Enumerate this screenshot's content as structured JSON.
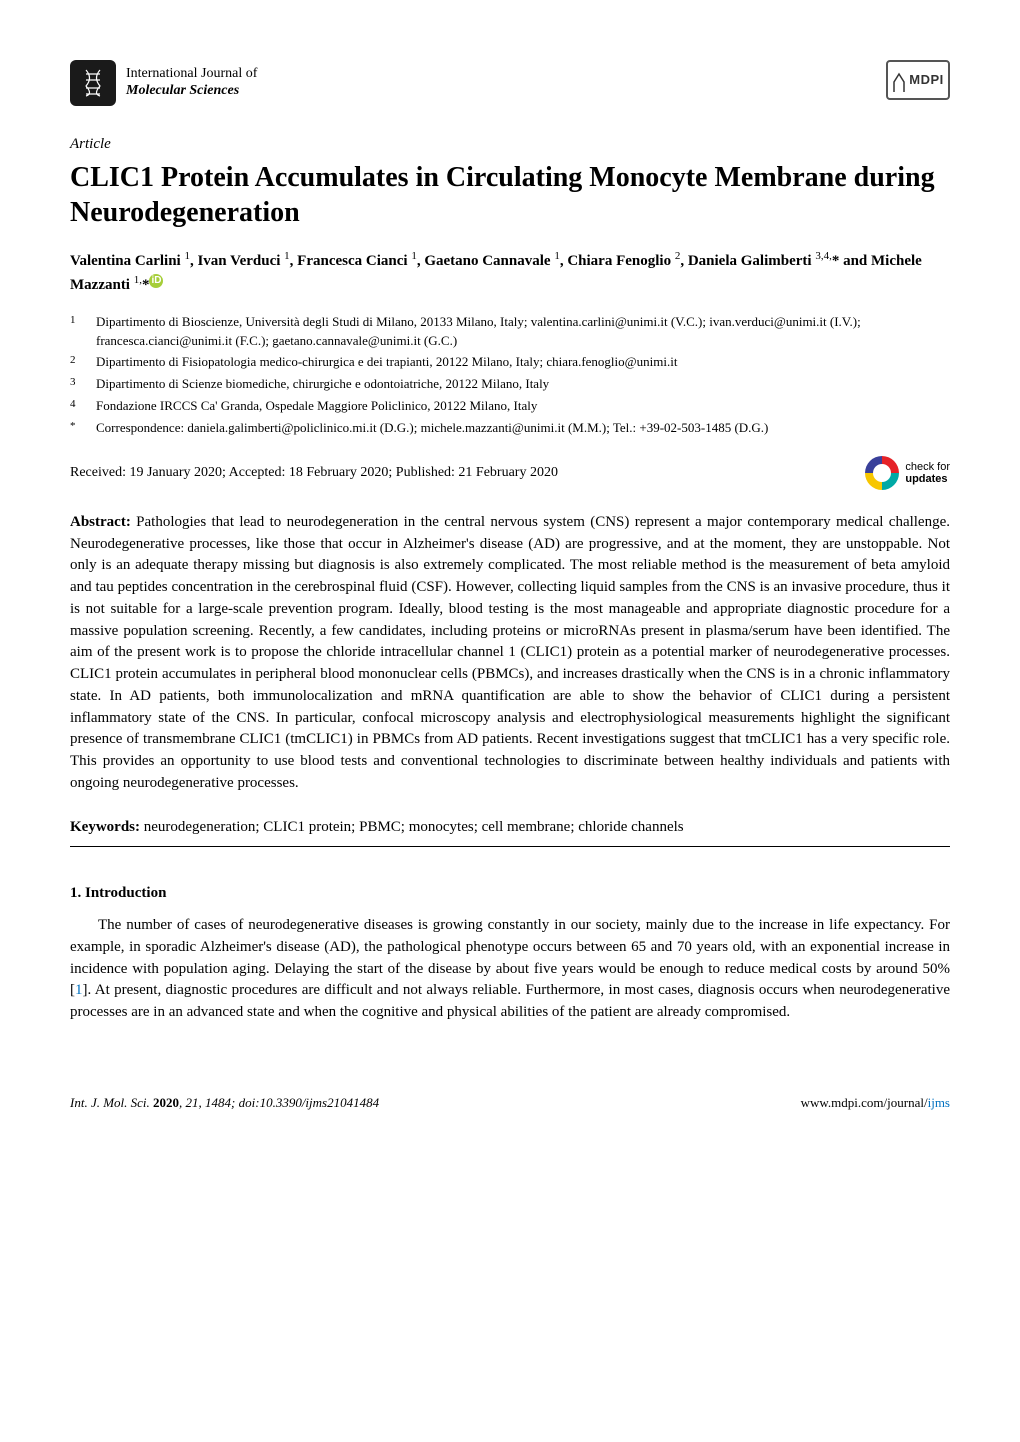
{
  "journal": {
    "line1": "International Journal of",
    "line2": "Molecular Sciences"
  },
  "publisher_logo": "MDPI",
  "article_type": "Article",
  "title": "CLIC1 Protein Accumulates in Circulating Monocyte Membrane during Neurodegeneration",
  "authors_html": "Valentina Carlini <sup>1</sup>, Ivan Verduci <sup>1</sup>, Francesca Cianci <sup>1</sup>, Gaetano Cannavale <sup>1</sup>, Chiara Fenoglio <sup>2</sup>, Daniela Galimberti <sup>3,4,</sup>* and Michele Mazzanti <sup>1,</sup>*",
  "affiliations": [
    {
      "num": "1",
      "text": "Dipartimento di Bioscienze, Università degli Studi di Milano, 20133 Milano, Italy; valentina.carlini@unimi.it (V.C.); ivan.verduci@unimi.it (I.V.); francesca.cianci@unimi.it (F.C.); gaetano.cannavale@unimi.it (G.C.)"
    },
    {
      "num": "2",
      "text": "Dipartimento di Fisiopatologia medico-chirurgica e dei trapianti, 20122 Milano, Italy; chiara.fenoglio@unimi.it"
    },
    {
      "num": "3",
      "text": "Dipartimento di Scienze biomediche, chirurgiche e odontoiatriche, 20122 Milano, Italy"
    },
    {
      "num": "4",
      "text": "Fondazione IRCCS Ca' Granda, Ospedale Maggiore Policlinico, 20122 Milano, Italy"
    },
    {
      "num": "*",
      "text": "Correspondence: daniela.galimberti@policlinico.mi.it (D.G.); michele.mazzanti@unimi.it (M.M.); Tel.: +39-02-503-1485 (D.G.)"
    }
  ],
  "dates": "Received: 19 January 2020; Accepted: 18 February 2020; Published: 21 February 2020",
  "check_updates": {
    "line1": "check for",
    "line2": "updates"
  },
  "abstract_label": "Abstract:",
  "abstract": " Pathologies that lead to neurodegeneration in the central nervous system (CNS) represent a major contemporary medical challenge. Neurodegenerative processes, like those that occur in Alzheimer's disease (AD) are progressive, and at the moment, they are unstoppable. Not only is an adequate therapy missing but diagnosis is also extremely complicated. The most reliable method is the measurement of beta amyloid and tau peptides concentration in the cerebrospinal fluid (CSF). However, collecting liquid samples from the CNS is an invasive procedure, thus it is not suitable for a large-scale prevention program. Ideally, blood testing is the most manageable and appropriate diagnostic procedure for a massive population screening. Recently, a few candidates, including proteins or microRNAs present in plasma/serum have been identified. The aim of the present work is to propose the chloride intracellular channel 1 (CLIC1) protein as a potential marker of neurodegenerative processes. CLIC1 protein accumulates in peripheral blood mononuclear cells (PBMCs), and increases drastically when the CNS is in a chronic inflammatory state. In AD patients, both immunolocalization and mRNA quantification are able to show the behavior of CLIC1 during a persistent inflammatory state of the CNS. In particular, confocal microscopy analysis and electrophysiological measurements highlight the significant presence of transmembrane CLIC1 (tmCLIC1) in PBMCs from AD patients. Recent investigations suggest that tmCLIC1 has a very specific role. This provides an opportunity to use blood tests and conventional technologies to discriminate between healthy individuals and patients with ongoing neurodegenerative processes.",
  "keywords_label": "Keywords:",
  "keywords": " neurodegeneration; CLIC1 protein; PBMC; monocytes; cell membrane; chloride channels",
  "section1": "1. Introduction",
  "intro_pre": "The number of cases of neurodegenerative diseases is growing constantly in our society, mainly due to the increase in life expectancy. For example, in sporadic Alzheimer's disease (AD), the pathological phenotype occurs between 65 and 70 years old, with an exponential increase in incidence with population aging. Delaying the start of the disease by about five years would be enough to reduce medical costs by around 50% [",
  "intro_ref": "1",
  "intro_post": "]. At present, diagnostic procedures are difficult and not always reliable. Furthermore, in most cases, diagnosis occurs when neurodegenerative processes are in an advanced state and when the cognitive and physical abilities of the patient are already compromised.",
  "footer": {
    "left_plain": "Int. J. Mol. Sci. ",
    "left_bold": "2020",
    "left_post": ", 21, 1484; doi:10.3390/ijms21041484",
    "right_pre": "www.mdpi.com/journal/",
    "right_link": "ijms"
  },
  "colors": {
    "link": "#0070c0",
    "orcid": "#a6ce39",
    "text": "#000000",
    "bg": "#ffffff"
  }
}
